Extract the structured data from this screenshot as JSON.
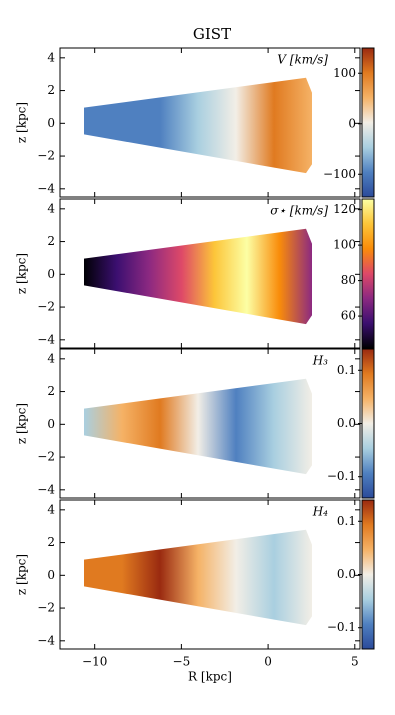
{
  "chart_data": [
    {
      "type": "map",
      "title": "GIST",
      "ylabel": "z [kpc]",
      "colorbar_label": "V [km/s]",
      "ylim": [
        -4.5,
        4.6
      ],
      "yticks": [
        4,
        2,
        0,
        {
          "value": -2,
          "label": "−2"
        },
        {
          "value": -4,
          "label": "−4"
        }
      ],
      "clim": [
        -145,
        150
      ],
      "cticks": [
        100,
        0,
        {
          "value": -100,
          "label": "−100"
        }
      ],
      "cmap": [
        "#2b4a9a",
        "#4f80c0",
        "#a9cfe0",
        "#f2eee6",
        "#f5b266",
        "#e07a20",
        "#9a2a10"
      ]
    },
    {
      "type": "map",
      "ylabel": "z [kpc]",
      "colorbar_label": "σ⋆ [km/s]",
      "ylim": [
        -4.5,
        4.6
      ],
      "yticks": [
        4,
        2,
        0,
        {
          "value": -2,
          "label": "−2"
        },
        {
          "value": -4,
          "label": "−4"
        }
      ],
      "clim": [
        42,
        126
      ],
      "cticks": [
        120,
        100,
        80,
        60
      ],
      "cmap": [
        "#000004",
        "#3b0f70",
        "#8c2981",
        "#de4968",
        "#f98c0a",
        "#fcc539",
        "#fcffa4"
      ]
    },
    {
      "type": "map",
      "ylabel": "z [kpc]",
      "colorbar_label": "H₃",
      "ylim": [
        -4.5,
        4.6
      ],
      "yticks": [
        4,
        2,
        0,
        {
          "value": -2,
          "label": "−2"
        },
        {
          "value": -4,
          "label": "−4"
        }
      ],
      "clim": [
        -0.14,
        0.14
      ],
      "cticks": [
        0.1,
        {
          "value": 0,
          "label": "0.0"
        },
        {
          "value": -0.1,
          "label": "−0.1"
        }
      ],
      "cmap": [
        "#2b4a9a",
        "#4f80c0",
        "#a9cfe0",
        "#f2eee6",
        "#f5b266",
        "#e07a20",
        "#9a2a10"
      ]
    },
    {
      "type": "map",
      "ylabel": "z [kpc]",
      "colorbar_label": "H₄",
      "xlabel": "R [kpc]",
      "xlim": [
        -12,
        5.3
      ],
      "xticks": [
        {
          "value": -10,
          "label": "−10"
        },
        {
          "value": -5,
          "label": "−5"
        },
        0,
        5
      ],
      "ylim": [
        -4.5,
        4.6
      ],
      "yticks": [
        4,
        2,
        0,
        {
          "value": -2,
          "label": "−2"
        },
        {
          "value": -4,
          "label": "−4"
        }
      ],
      "clim": [
        -0.14,
        0.14
      ],
      "cticks": [
        0.1,
        {
          "value": 0,
          "label": "0.0"
        },
        {
          "value": -0.1,
          "label": "−0.1"
        }
      ],
      "cmap": [
        "#2b4a9a",
        "#4f80c0",
        "#a9cfe0",
        "#f2eee6",
        "#f5b266",
        "#e07a20",
        "#9a2a10"
      ]
    }
  ]
}
